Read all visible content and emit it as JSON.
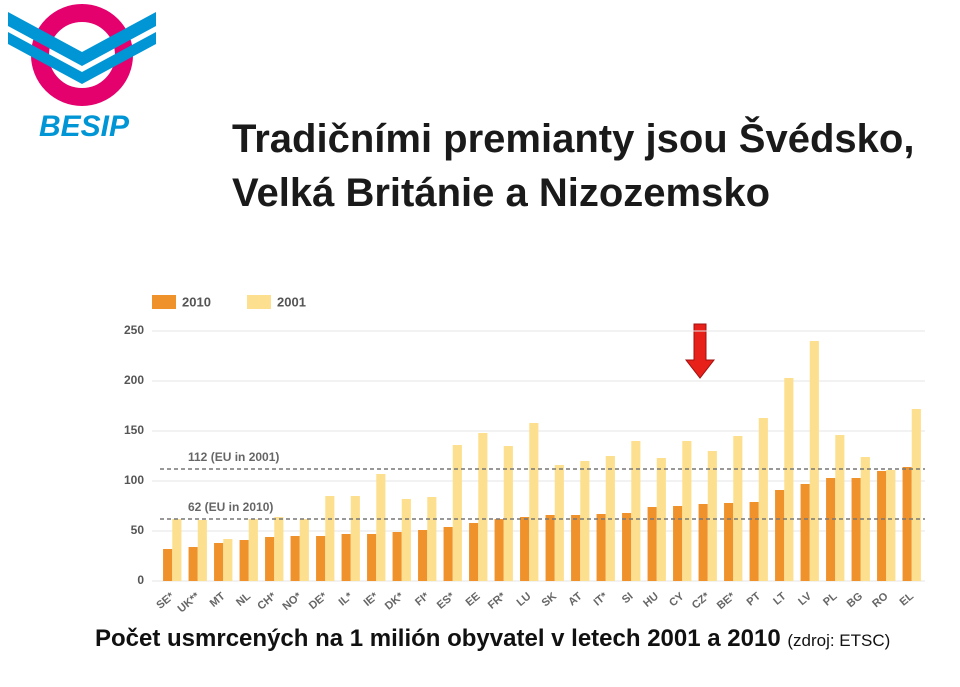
{
  "logo_text": "BESIP",
  "title_lines": [
    "Tradičními premianty jsou Švédsko,",
    "Velká Británie a Nizozemsko"
  ],
  "caption": "Počet usmrcených na 1 milión obyvatel v letech 2001 a 2010",
  "source": "(zdroj: ETSC)",
  "chart_data": {
    "type": "bar",
    "categories": [
      "SE*",
      "UK**",
      "MT",
      "NL",
      "CH*",
      "NO*",
      "DE*",
      "IL*",
      "IE*",
      "DK*",
      "FI*",
      "ES*",
      "EE",
      "FR*",
      "LU",
      "SK",
      "AT",
      "IT*",
      "SI",
      "HU",
      "CY",
      "CZ*",
      "BE*",
      "PT",
      "LT",
      "LV",
      "PL",
      "BG",
      "RO",
      "EL"
    ],
    "series": [
      {
        "name": "2010",
        "color": "#f0922c",
        "values": [
          32,
          34,
          38,
          41,
          44,
          45,
          45,
          47,
          47,
          49,
          51,
          54,
          58,
          62,
          64,
          66,
          66,
          67,
          68,
          74,
          75,
          77,
          78,
          79,
          91,
          97,
          103,
          103,
          110,
          114
        ]
      },
      {
        "name": "2001",
        "color": "#fde08f",
        "values": [
          62,
          61,
          42,
          62,
          64,
          62,
          85,
          85,
          107,
          82,
          84,
          136,
          148,
          135,
          158,
          116,
          120,
          125,
          140,
          123,
          140,
          130,
          145,
          163,
          203,
          240,
          146,
          124,
          111,
          172
        ]
      }
    ],
    "reference_lines": [
      {
        "value": 112,
        "label": "112 (EU in 2001)"
      },
      {
        "value": 62,
        "label": "62 (EU in 2010)"
      }
    ],
    "ylim": [
      0,
      260
    ],
    "yticks": [
      0,
      50,
      100,
      150,
      200,
      250
    ],
    "grid": true,
    "legend": "top-left"
  }
}
